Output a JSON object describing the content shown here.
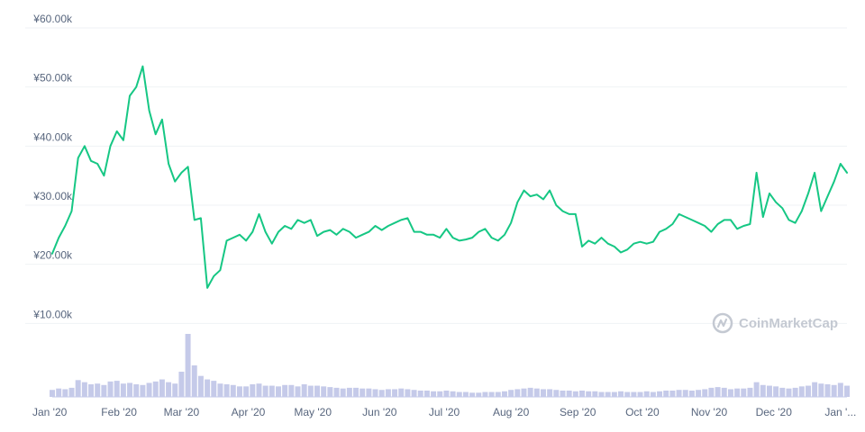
{
  "chart_data": {
    "type": "line",
    "price_series": {
      "color": "#16c784",
      "x": [
        "2020-01-01",
        "2020-01-04",
        "2020-01-07",
        "2020-01-10",
        "2020-01-13",
        "2020-01-16",
        "2020-01-19",
        "2020-01-22",
        "2020-01-25",
        "2020-01-28",
        "2020-01-31",
        "2020-02-03",
        "2020-02-06",
        "2020-02-09",
        "2020-02-12",
        "2020-02-15",
        "2020-02-18",
        "2020-02-21",
        "2020-02-24",
        "2020-02-27",
        "2020-03-01",
        "2020-03-04",
        "2020-03-07",
        "2020-03-10",
        "2020-03-13",
        "2020-03-16",
        "2020-03-19",
        "2020-03-22",
        "2020-03-25",
        "2020-03-28",
        "2020-03-31",
        "2020-04-03",
        "2020-04-06",
        "2020-04-09",
        "2020-04-12",
        "2020-04-15",
        "2020-04-18",
        "2020-04-21",
        "2020-04-24",
        "2020-04-27",
        "2020-04-30",
        "2020-05-03",
        "2020-05-06",
        "2020-05-09",
        "2020-05-12",
        "2020-05-15",
        "2020-05-18",
        "2020-05-21",
        "2020-05-24",
        "2020-05-27",
        "2020-05-30",
        "2020-06-02",
        "2020-06-05",
        "2020-06-08",
        "2020-06-11",
        "2020-06-14",
        "2020-06-17",
        "2020-06-20",
        "2020-06-23",
        "2020-06-26",
        "2020-06-29",
        "2020-07-02",
        "2020-07-05",
        "2020-07-08",
        "2020-07-11",
        "2020-07-14",
        "2020-07-17",
        "2020-07-20",
        "2020-07-23",
        "2020-07-26",
        "2020-07-29",
        "2020-08-01",
        "2020-08-04",
        "2020-08-07",
        "2020-08-10",
        "2020-08-13",
        "2020-08-16",
        "2020-08-19",
        "2020-08-22",
        "2020-08-25",
        "2020-08-28",
        "2020-08-31",
        "2020-09-03",
        "2020-09-06",
        "2020-09-09",
        "2020-09-12",
        "2020-09-15",
        "2020-09-18",
        "2020-09-21",
        "2020-09-24",
        "2020-09-27",
        "2020-09-30",
        "2020-10-03",
        "2020-10-06",
        "2020-10-09",
        "2020-10-12",
        "2020-10-15",
        "2020-10-18",
        "2020-10-21",
        "2020-10-24",
        "2020-10-27",
        "2020-10-30",
        "2020-11-02",
        "2020-11-05",
        "2020-11-08",
        "2020-11-11",
        "2020-11-14",
        "2020-11-17",
        "2020-11-20",
        "2020-11-23",
        "2020-11-26",
        "2020-11-29",
        "2020-12-02",
        "2020-12-05",
        "2020-12-08",
        "2020-12-11",
        "2020-12-14",
        "2020-12-17",
        "2020-12-20",
        "2020-12-23",
        "2020-12-26",
        "2020-12-29",
        "2021-01-01",
        "2021-01-04"
      ],
      "values": [
        21800,
        24500,
        26500,
        29000,
        38000,
        40000,
        37500,
        37000,
        35000,
        40000,
        42500,
        41000,
        48500,
        50000,
        53500,
        46000,
        42000,
        44500,
        37000,
        34000,
        35500,
        36500,
        27500,
        27800,
        16000,
        18000,
        19000,
        24000,
        24500,
        25000,
        24000,
        25500,
        28500,
        25500,
        23500,
        25500,
        26500,
        26000,
        27500,
        27000,
        27500,
        24800,
        25500,
        25800,
        25000,
        26000,
        25500,
        24500,
        25000,
        25500,
        26500,
        25800,
        26500,
        27000,
        27500,
        27800,
        25500,
        25500,
        25000,
        25000,
        24500,
        26000,
        24500,
        24000,
        24200,
        24500,
        25500,
        26000,
        24500,
        24000,
        25000,
        27000,
        30500,
        32500,
        31500,
        31800,
        31000,
        32500,
        30000,
        29000,
        28500,
        28500,
        23000,
        24000,
        23500,
        24500,
        23500,
        23000,
        22000,
        22500,
        23500,
        23800,
        23500,
        23800,
        25500,
        26000,
        26800,
        28500,
        28000,
        27500,
        27000,
        26500,
        25500,
        26800,
        27500,
        27500,
        26000,
        26500,
        26800,
        35500,
        28000,
        32000,
        30500,
        29500,
        27500,
        27000,
        29000,
        32000,
        35500,
        29000,
        31500,
        34000,
        37000,
        35500
      ]
    },
    "volume_series": {
      "color": "#c5cae9",
      "values": [
        2,
        2.4,
        2.2,
        2.6,
        4.8,
        4.2,
        3.6,
        3.8,
        3.4,
        4.4,
        4.6,
        3.8,
        4.0,
        3.6,
        3.4,
        4.0,
        4.4,
        5.0,
        4.2,
        3.8,
        7.2,
        18.0,
        9.0,
        6.0,
        5.0,
        4.6,
        3.8,
        3.6,
        3.4,
        3.0,
        3.0,
        3.6,
        3.8,
        3.2,
        3.2,
        3.0,
        3.4,
        3.4,
        3.0,
        3.6,
        3.2,
        3.2,
        3.0,
        2.8,
        2.6,
        2.4,
        2.6,
        2.6,
        2.4,
        2.4,
        2.2,
        2.0,
        2.2,
        2.2,
        2.4,
        2.2,
        2.0,
        1.8,
        1.8,
        1.6,
        1.6,
        1.8,
        1.6,
        1.4,
        1.4,
        1.2,
        1.2,
        1.4,
        1.4,
        1.4,
        1.6,
        2.0,
        2.2,
        2.4,
        2.6,
        2.4,
        2.2,
        2.2,
        2.0,
        1.8,
        1.8,
        1.6,
        1.8,
        1.6,
        1.6,
        1.4,
        1.4,
        1.4,
        1.6,
        1.4,
        1.4,
        1.4,
        1.6,
        1.4,
        1.6,
        1.8,
        1.8,
        2.0,
        2.0,
        1.8,
        2.0,
        2.2,
        2.6,
        2.8,
        2.6,
        2.2,
        2.4,
        2.4,
        2.6,
        4.2,
        3.4,
        3.2,
        3.0,
        2.6,
        2.4,
        2.6,
        3.0,
        3.2,
        4.2,
        3.8,
        3.6,
        3.4,
        4.0,
        3.2
      ]
    },
    "y_ticks": [
      {
        "value": 10000,
        "label": "¥10.00k"
      },
      {
        "value": 20000,
        "label": "¥20.00k"
      },
      {
        "value": 30000,
        "label": "¥30.00k"
      },
      {
        "value": 40000,
        "label": "¥40.00k"
      },
      {
        "value": 50000,
        "label": "¥50.00k"
      },
      {
        "value": 60000,
        "label": "¥60.00k"
      }
    ],
    "x_ticks": [
      {
        "date": "2020-01-01",
        "label": "Jan '20"
      },
      {
        "date": "2020-02-01",
        "label": "Feb '20"
      },
      {
        "date": "2020-03-01",
        "label": "Mar '20"
      },
      {
        "date": "2020-04-01",
        "label": "Apr '20"
      },
      {
        "date": "2020-05-01",
        "label": "May '20"
      },
      {
        "date": "2020-06-01",
        "label": "Jun '20"
      },
      {
        "date": "2020-07-01",
        "label": "Jul '20"
      },
      {
        "date": "2020-08-01",
        "label": "Aug '20"
      },
      {
        "date": "2020-09-01",
        "label": "Sep '20"
      },
      {
        "date": "2020-10-01",
        "label": "Oct '20"
      },
      {
        "date": "2020-11-01",
        "label": "Nov '20"
      },
      {
        "date": "2020-12-01",
        "label": "Dec '20"
      },
      {
        "date": "2021-01-01",
        "label": "Jan '..."
      }
    ],
    "xlim": [
      "2020-01-01",
      "2021-01-04"
    ],
    "ylim": [
      0,
      60000
    ],
    "grid": true,
    "title": "",
    "xlabel": "",
    "ylabel": ""
  },
  "watermark": {
    "text": "CoinMarketCap",
    "icon": "coinmarketcap-logo-icon",
    "color": "#c4c9d2"
  }
}
